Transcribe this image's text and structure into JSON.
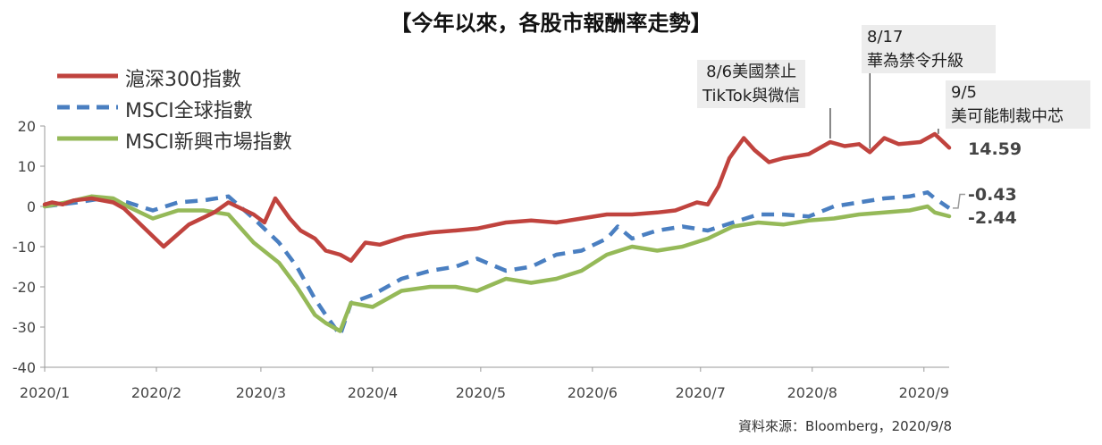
{
  "title": "【今年以來，各股市報酬率走勢】",
  "source": "資料來源：Bloomberg，2020/9/8",
  "annotations": [
    {
      "lines": [
        "8/6美國禁止",
        "TikTok與微信"
      ],
      "date": "2020-08-06"
    },
    {
      "lines": [
        "8/17",
        "華為禁令升級"
      ],
      "date": "2020-08-17"
    },
    {
      "lines": [
        "9/5",
        "美可能制裁中芯"
      ],
      "date": "2020-09-05"
    }
  ],
  "end_labels": [
    "14.59",
    "-0.43",
    "-2.44"
  ],
  "chart_data": {
    "type": "line",
    "xlabel": "",
    "ylabel": "",
    "ylim": [
      -40,
      20
    ],
    "yticks": [
      "20",
      "10",
      "0",
      "-10",
      "-20",
      "-30",
      "-40"
    ],
    "xticks": [
      "2020/1",
      "2020/2",
      "2020/3",
      "2020/4",
      "2020/5",
      "2020/6",
      "2020/7",
      "2020/8",
      "2020/9"
    ],
    "legend_position": "top-left",
    "grid": false,
    "series": [
      {
        "name": "滬深300指數",
        "color": "#c0433e",
        "style": "solid",
        "end_value": 14.59,
        "x": [
          "2020-01-01",
          "2020-01-03",
          "2020-01-06",
          "2020-01-09",
          "2020-01-14",
          "2020-01-20",
          "2020-01-23",
          "2020-02-03",
          "2020-02-10",
          "2020-02-17",
          "2020-02-21",
          "2020-02-28",
          "2020-03-02",
          "2020-03-05",
          "2020-03-09",
          "2020-03-12",
          "2020-03-16",
          "2020-03-19",
          "2020-03-23",
          "2020-03-26",
          "2020-03-30",
          "2020-04-03",
          "2020-04-10",
          "2020-04-17",
          "2020-04-24",
          "2020-04-30",
          "2020-05-08",
          "2020-05-15",
          "2020-05-22",
          "2020-05-29",
          "2020-06-05",
          "2020-06-12",
          "2020-06-19",
          "2020-06-24",
          "2020-06-30",
          "2020-07-03",
          "2020-07-06",
          "2020-07-09",
          "2020-07-13",
          "2020-07-16",
          "2020-07-20",
          "2020-07-24",
          "2020-07-31",
          "2020-08-06",
          "2020-08-10",
          "2020-08-14",
          "2020-08-17",
          "2020-08-21",
          "2020-08-25",
          "2020-08-31",
          "2020-09-04",
          "2020-09-08"
        ],
        "values": [
          0.5,
          1,
          0.5,
          1.5,
          2,
          1,
          -0.5,
          -10,
          -4.5,
          -1.5,
          1,
          -2,
          -4,
          2,
          -3,
          -6,
          -8,
          -11,
          -12,
          -13.5,
          -9,
          -9.5,
          -7.5,
          -6.5,
          -6,
          -5.5,
          -4,
          -3.5,
          -4,
          -3,
          -2,
          -2,
          -1.5,
          -1,
          1,
          0.5,
          5,
          12,
          17,
          14,
          11,
          12,
          13,
          16,
          15,
          15.5,
          13.5,
          17,
          15.5,
          16,
          18,
          14.59
        ]
      },
      {
        "name": "MSCI全球指數",
        "color": "#4a7fc1",
        "style": "dashed",
        "end_value": -0.43,
        "x": [
          "2020-01-01",
          "2020-01-10",
          "2020-01-17",
          "2020-01-24",
          "2020-01-31",
          "2020-02-07",
          "2020-02-14",
          "2020-02-21",
          "2020-02-28",
          "2020-03-06",
          "2020-03-11",
          "2020-03-16",
          "2020-03-19",
          "2020-03-23",
          "2020-03-26",
          "2020-04-01",
          "2020-04-09",
          "2020-04-17",
          "2020-04-24",
          "2020-04-30",
          "2020-05-08",
          "2020-05-15",
          "2020-05-22",
          "2020-05-29",
          "2020-06-05",
          "2020-06-08",
          "2020-06-12",
          "2020-06-19",
          "2020-06-26",
          "2020-07-03",
          "2020-07-10",
          "2020-07-17",
          "2020-07-24",
          "2020-07-31",
          "2020-08-07",
          "2020-08-14",
          "2020-08-21",
          "2020-08-28",
          "2020-09-02",
          "2020-09-04",
          "2020-09-08"
        ],
        "values": [
          0,
          1,
          2,
          1,
          -1,
          1,
          1.5,
          2.5,
          -3,
          -9,
          -15,
          -23,
          -27,
          -32,
          -24,
          -22,
          -18,
          -16,
          -15,
          -13,
          -16,
          -15,
          -12,
          -11,
          -8,
          -5,
          -8,
          -6,
          -5,
          -6,
          -4,
          -2,
          -2,
          -2.5,
          0,
          1,
          2,
          2.5,
          3.5,
          2,
          -0.43
        ]
      },
      {
        "name": "MSCI新興市場指數",
        "color": "#95b958",
        "style": "solid",
        "end_value": -2.44,
        "x": [
          "2020-01-01",
          "2020-01-07",
          "2020-01-14",
          "2020-01-20",
          "2020-01-24",
          "2020-01-31",
          "2020-02-07",
          "2020-02-14",
          "2020-02-21",
          "2020-02-28",
          "2020-03-06",
          "2020-03-11",
          "2020-03-16",
          "2020-03-19",
          "2020-03-23",
          "2020-03-26",
          "2020-04-01",
          "2020-04-09",
          "2020-04-17",
          "2020-04-24",
          "2020-04-30",
          "2020-05-08",
          "2020-05-15",
          "2020-05-22",
          "2020-05-29",
          "2020-06-05",
          "2020-06-12",
          "2020-06-19",
          "2020-06-26",
          "2020-07-03",
          "2020-07-10",
          "2020-07-17",
          "2020-07-24",
          "2020-07-31",
          "2020-08-07",
          "2020-08-14",
          "2020-08-21",
          "2020-08-28",
          "2020-09-02",
          "2020-09-04",
          "2020-09-08"
        ],
        "values": [
          0,
          1,
          2.5,
          2,
          0,
          -3,
          -1,
          -1,
          -2,
          -9,
          -14,
          -20,
          -27,
          -29,
          -31,
          -24,
          -25,
          -21,
          -20,
          -20,
          -21,
          -18,
          -19,
          -18,
          -16,
          -12,
          -10,
          -11,
          -10,
          -8,
          -5,
          -4,
          -4.5,
          -3.5,
          -3,
          -2,
          -1.5,
          -1,
          0,
          -1.5,
          -2.44
        ]
      }
    ]
  }
}
